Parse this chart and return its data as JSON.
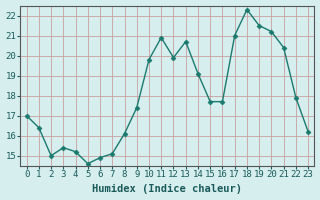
{
  "x": [
    0,
    1,
    2,
    3,
    4,
    5,
    6,
    7,
    8,
    9,
    10,
    11,
    12,
    13,
    14,
    15,
    16,
    17,
    18,
    19,
    20,
    21,
    22,
    23
  ],
  "y": [
    17.0,
    16.4,
    15.0,
    15.4,
    15.2,
    14.6,
    14.9,
    15.1,
    16.1,
    17.4,
    19.8,
    20.9,
    19.9,
    20.7,
    19.1,
    17.7,
    17.7,
    21.0,
    22.3,
    21.5,
    21.2,
    20.4,
    17.9,
    16.2
  ],
  "line_color": "#1a7a6e",
  "marker": "D",
  "marker_size": 2.5,
  "line_width": 1.0,
  "bg_color": "#d6eeee",
  "grid_color": "#c8a0a0",
  "xlabel": "Humidex (Indice chaleur)",
  "ylim": [
    14.5,
    22.5
  ],
  "xlim": [
    -0.5,
    23.5
  ],
  "yticks": [
    15,
    16,
    17,
    18,
    19,
    20,
    21,
    22
  ],
  "ytick_labels": [
    "15",
    "16",
    "17",
    "18",
    "19",
    "20",
    "21",
    "22"
  ],
  "xticks": [
    0,
    1,
    2,
    3,
    4,
    5,
    6,
    7,
    8,
    9,
    10,
    11,
    12,
    13,
    14,
    15,
    16,
    17,
    18,
    19,
    20,
    21,
    22,
    23
  ],
  "tick_fontsize": 6.5,
  "xlabel_fontsize": 7.5,
  "spine_color": "#555555"
}
